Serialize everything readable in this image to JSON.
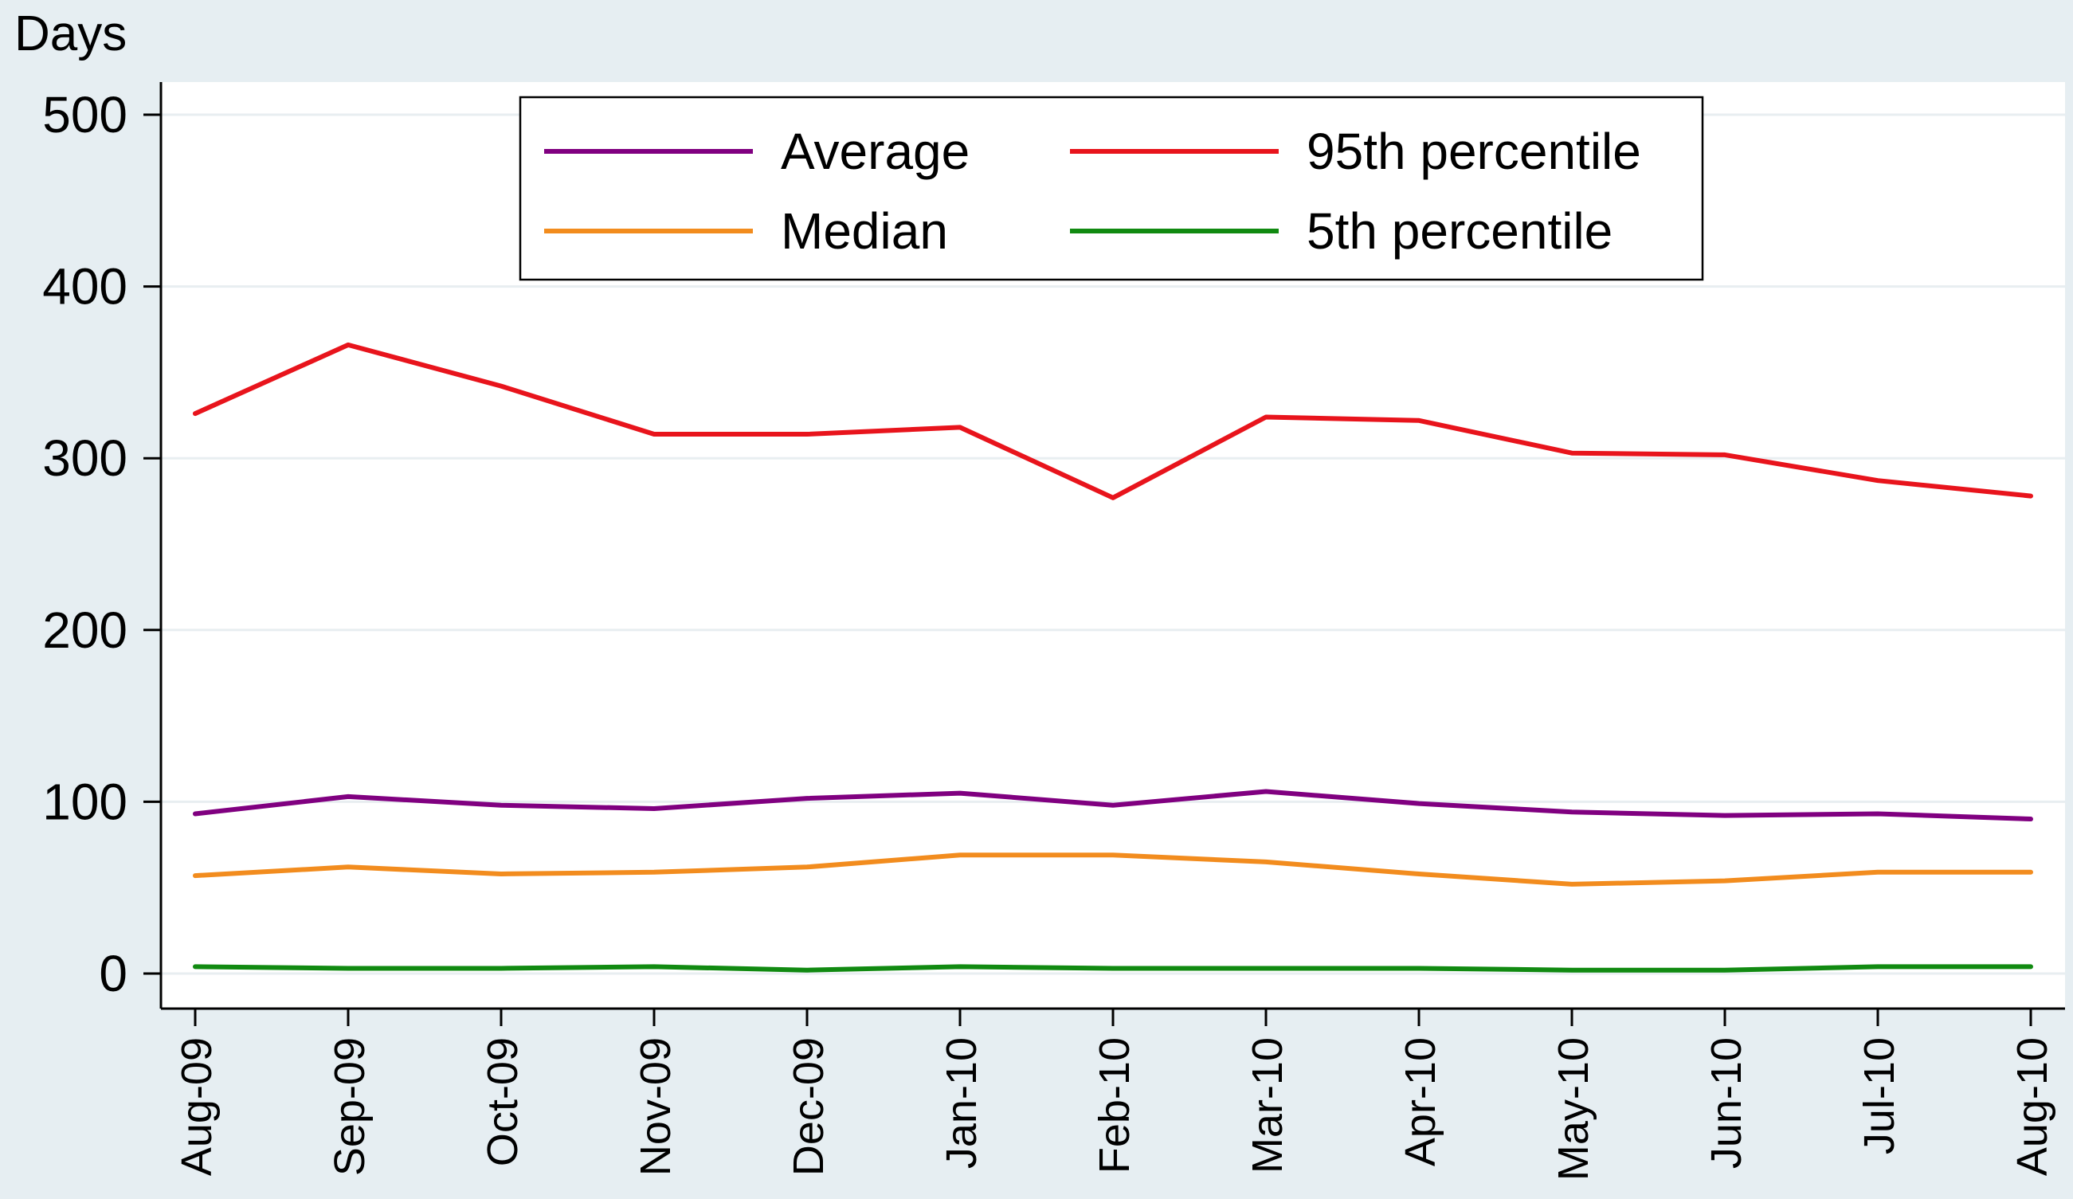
{
  "chart_data": {
    "type": "line",
    "ylabel": "Days",
    "xlabel": "",
    "ylim": [
      0,
      500
    ],
    "yticks": [
      0,
      100,
      200,
      300,
      400,
      500
    ],
    "categories": [
      "Aug-09",
      "Sep-09",
      "Oct-09",
      "Nov-09",
      "Dec-09",
      "Jan-10",
      "Feb-10",
      "Mar-10",
      "Apr-10",
      "May-10",
      "Jun-10",
      "Jul-10",
      "Aug-10"
    ],
    "grid": true,
    "legend_position": "top",
    "series": [
      {
        "name": "Average",
        "color": "#800080",
        "values": [
          93,
          103,
          98,
          96,
          102,
          105,
          98,
          106,
          99,
          94,
          92,
          93,
          90
        ]
      },
      {
        "name": "95th percentile",
        "color": "#e8141c",
        "values": [
          326,
          366,
          342,
          314,
          314,
          318,
          277,
          324,
          322,
          303,
          302,
          287,
          278
        ]
      },
      {
        "name": "Median",
        "color": "#f28c1e",
        "values": [
          57,
          62,
          58,
          59,
          62,
          69,
          69,
          65,
          58,
          52,
          54,
          59,
          59
        ]
      },
      {
        "name": "5th percentile",
        "color": "#118a11",
        "values": [
          4,
          3,
          3,
          4,
          2,
          4,
          3,
          3,
          3,
          2,
          2,
          4,
          4
        ]
      }
    ]
  }
}
